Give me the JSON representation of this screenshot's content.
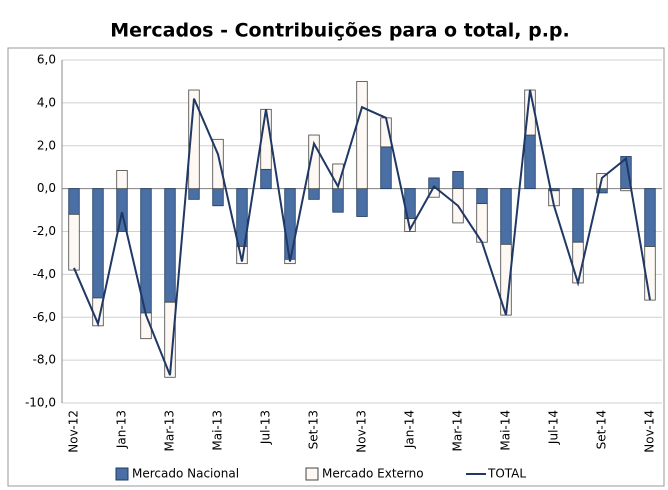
{
  "chart_data": {
    "type": "bar",
    "stacked": true,
    "title": "Mercados - Contribuições para o total, p.p.",
    "categories": [
      "Nov-12",
      null,
      "Jan-13",
      null,
      "Mar-13",
      null,
      "Mai-13",
      null,
      "Jul-13",
      null,
      "Set-13",
      null,
      "Nov-13",
      null,
      "Jan-14",
      null,
      "Mar-14",
      null,
      "Mai-14",
      null,
      "Jul-14",
      null,
      "Set-14",
      null,
      "Nov-14"
    ],
    "series": [
      {
        "name": "Mercado Nacional",
        "color": "#4a6fa5",
        "values": [
          -1.2,
          -5.1,
          -2.0,
          -5.8,
          -5.3,
          -0.5,
          -0.8,
          -2.7,
          0.9,
          -3.3,
          -0.5,
          -1.1,
          -1.3,
          1.95,
          -1.4,
          0.5,
          0.8,
          -0.7,
          -2.6,
          2.5,
          -0.1,
          -2.5,
          -0.2,
          1.5,
          -2.7
        ]
      },
      {
        "name": "Mercado Externo",
        "color": "#fdf8f4",
        "values": [
          -2.6,
          -1.3,
          0.85,
          -1.2,
          -3.5,
          4.6,
          2.3,
          -0.8,
          2.8,
          -0.2,
          2.5,
          1.15,
          5.0,
          1.35,
          -0.6,
          -0.4,
          -1.6,
          -1.8,
          -3.3,
          2.1,
          -0.7,
          -1.9,
          0.7,
          -0.1,
          -2.5
        ]
      },
      {
        "name": "TOTAL",
        "type": "line",
        "color": "#1f3864",
        "values": [
          -3.7,
          -6.3,
          -1.1,
          -5.9,
          -8.7,
          4.2,
          1.6,
          -3.4,
          3.7,
          -3.4,
          2.1,
          0.1,
          3.8,
          3.3,
          -1.9,
          0.1,
          -0.8,
          -2.5,
          -5.9,
          4.6,
          -0.8,
          -4.4,
          0.5,
          1.4,
          -5.2
        ]
      }
    ],
    "ylim": [
      -10,
      6
    ],
    "yticks": [
      {
        "value": -10,
        "label": "-10,0"
      },
      {
        "value": -8,
        "label": "-8,0"
      },
      {
        "value": -6,
        "label": "-6,0"
      },
      {
        "value": -4,
        "label": "-4,0"
      },
      {
        "value": -2,
        "label": "-2,0"
      },
      {
        "value": 0,
        "label": "0,0"
      },
      {
        "value": 2,
        "label": "2,0"
      },
      {
        "value": 4,
        "label": "4,0"
      },
      {
        "value": 6,
        "label": "6,0"
      }
    ],
    "grid": true,
    "legend": "bottom"
  }
}
